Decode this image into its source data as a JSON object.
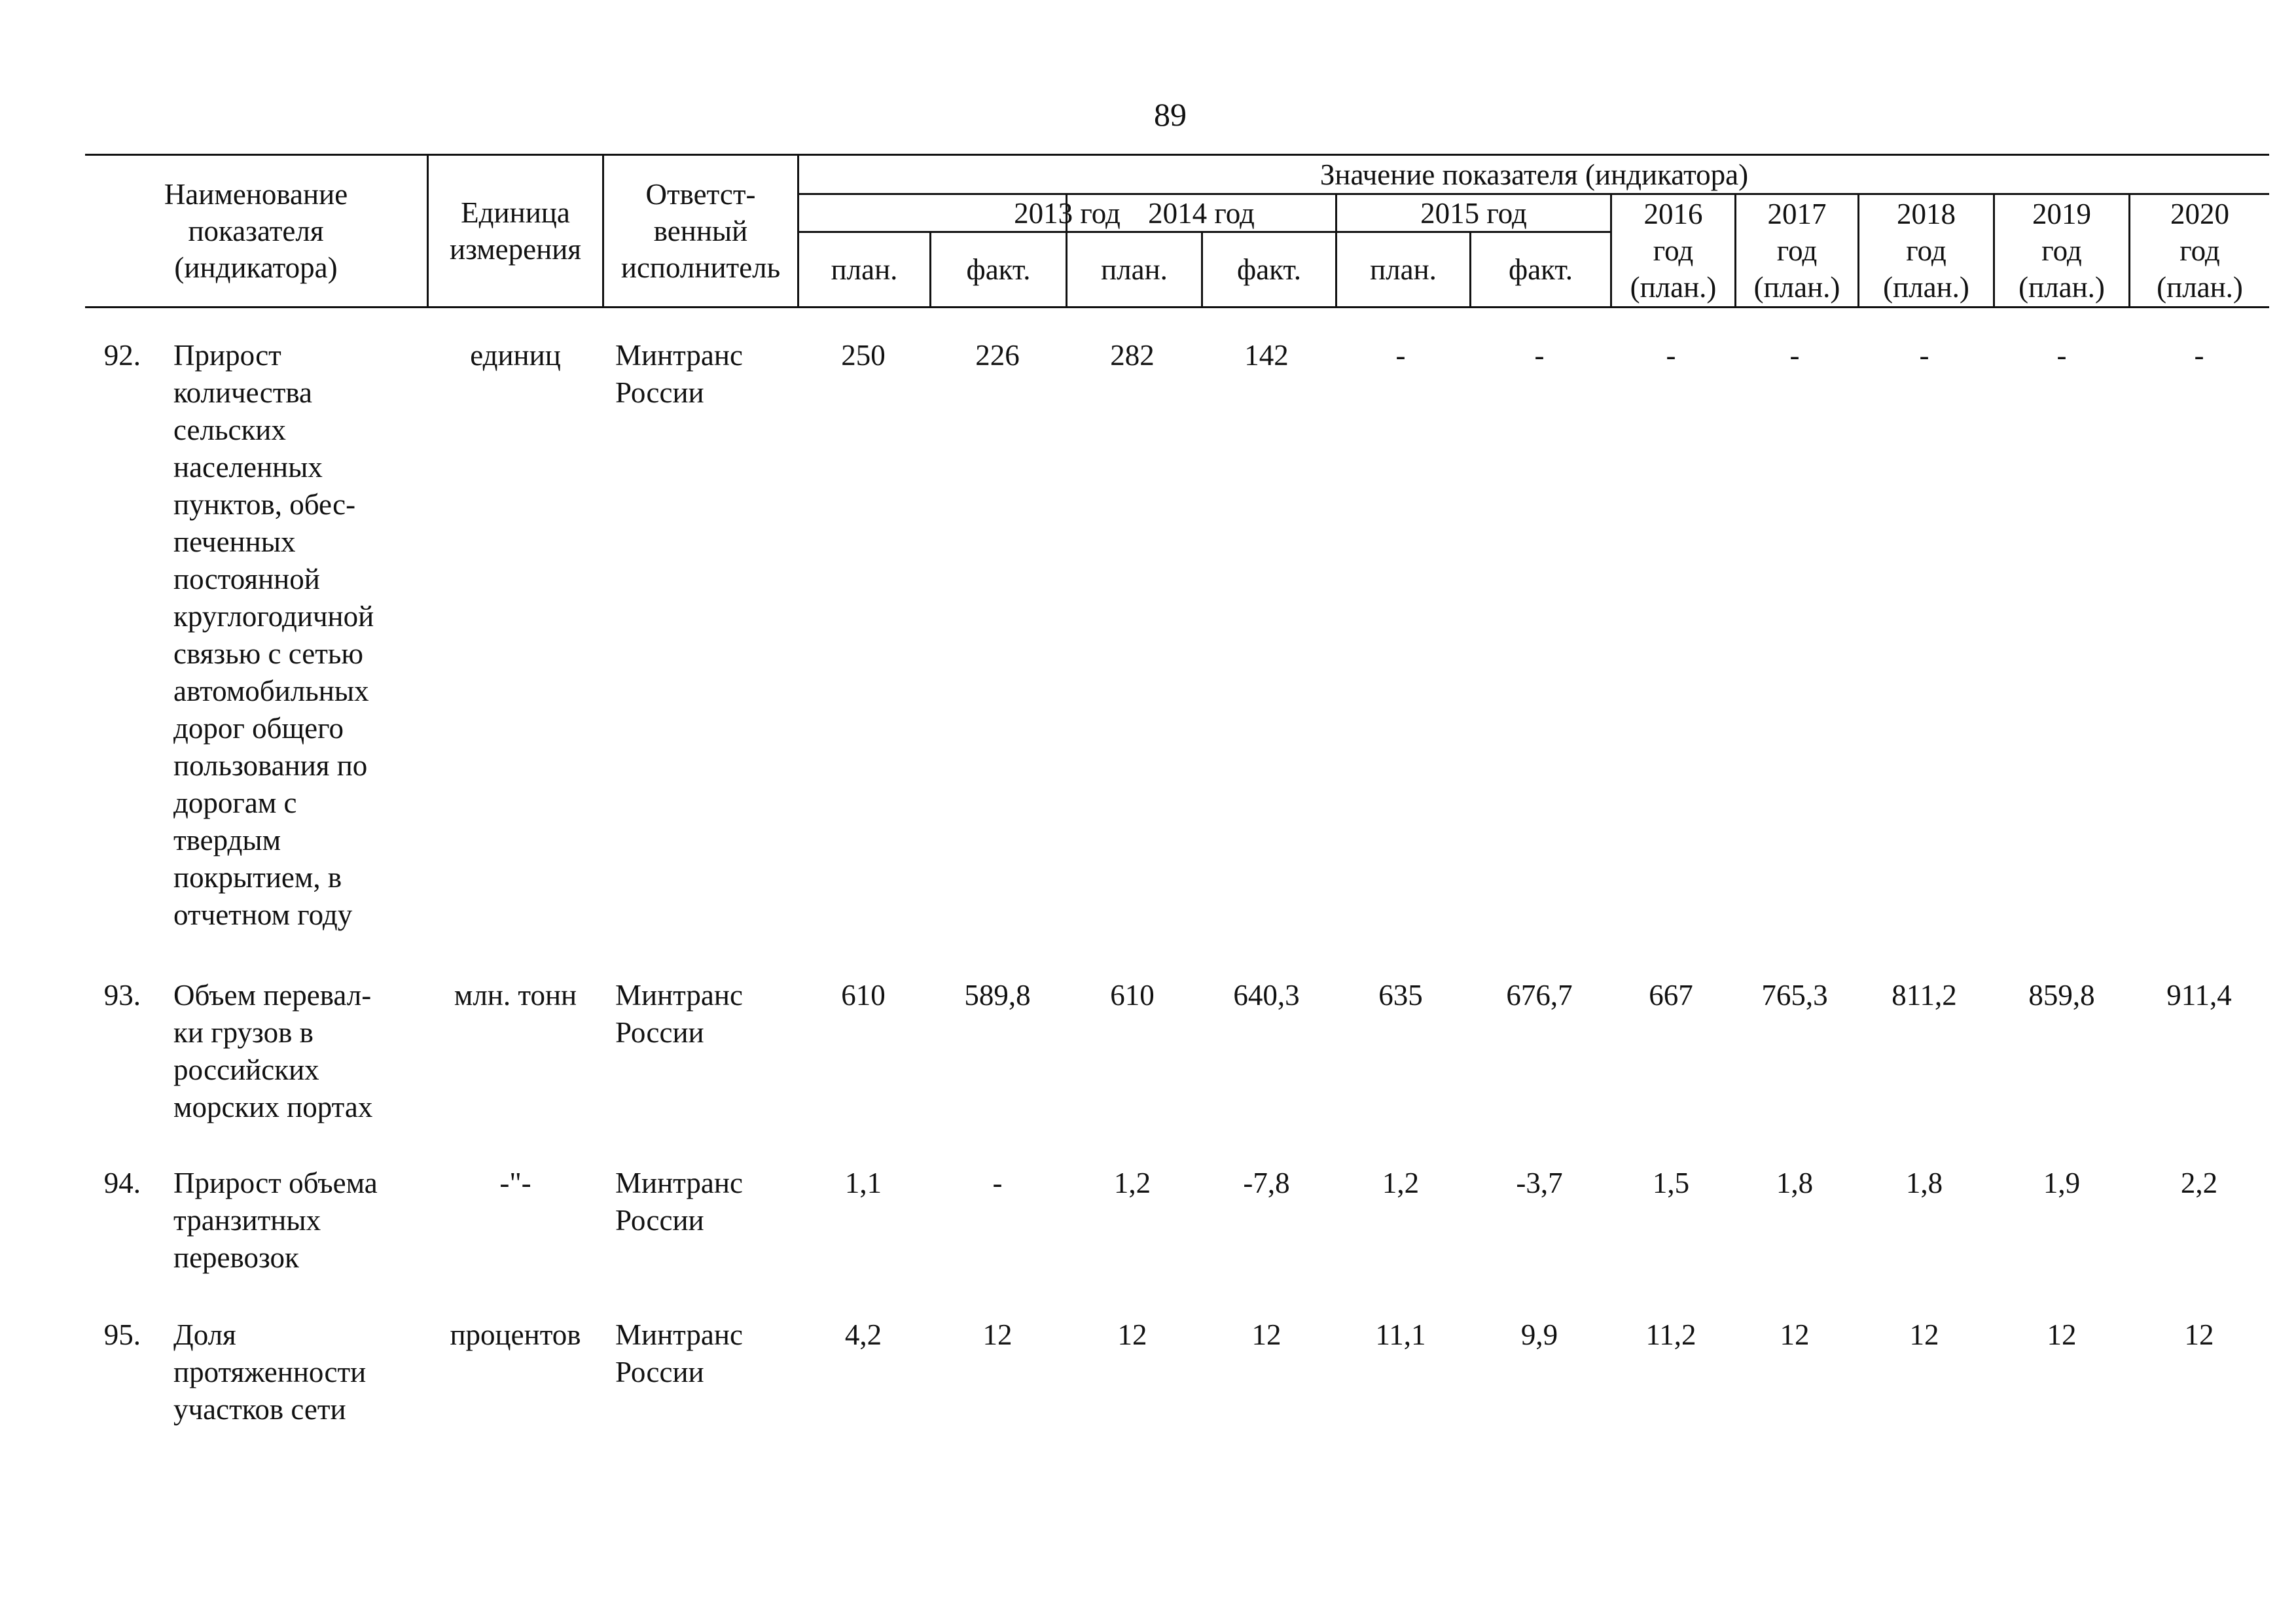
{
  "page": {
    "number": "89"
  },
  "table": {
    "header": {
      "name_lines": [
        "Наименование",
        "показателя",
        "(индикатора)"
      ],
      "unit_lines": [
        "Единица",
        "измерения"
      ],
      "executor_lines": [
        "Ответст-",
        "венный",
        "исполнитель"
      ],
      "group": "Значение показателя (индикатора)",
      "years": {
        "y2013": "2013 год",
        "y2014": "2014 год",
        "y2015": "2015 год",
        "y2016": [
          "2016",
          "год",
          "(план.)"
        ],
        "y2017": [
          "2017",
          "год",
          "(план.)"
        ],
        "y2018": [
          "2018",
          "год",
          "(план.)"
        ],
        "y2019": [
          "2019",
          "год",
          "(план.)"
        ],
        "y2020": [
          "2020",
          "год",
          "(план.)"
        ]
      },
      "plan": "план.",
      "fact": "факт."
    },
    "rows": [
      {
        "num": "92.",
        "name_lines": [
          "Прирост",
          "количества",
          "сельских",
          "населенных",
          "пунктов, обес-",
          "печенных",
          "постоянной",
          "круглогодичной",
          "связью с сетью",
          "автомобильных",
          "дорог общего",
          "пользования по",
          "дорогам с",
          "твердым",
          "покрытием, в",
          "отчетном году"
        ],
        "unit": "единиц",
        "executor_lines": [
          "Минтранс",
          "России"
        ],
        "values": [
          "250",
          "226",
          "282",
          "142",
          "-",
          "-",
          "-",
          "-",
          "-",
          "-",
          "-"
        ]
      },
      {
        "num": "93.",
        "name_lines": [
          "Объем перевал-",
          "ки грузов в",
          "российских",
          "морских портах"
        ],
        "unit": "млн. тонн",
        "executor_lines": [
          "Минтранс",
          "России"
        ],
        "values": [
          "610",
          "589,8",
          "610",
          "640,3",
          "635",
          "676,7",
          "667",
          "765,3",
          "811,2",
          "859,8",
          "911,4"
        ]
      },
      {
        "num": "94.",
        "name_lines": [
          "Прирост объема",
          "транзитных",
          "перевозок"
        ],
        "unit": "-\"-",
        "executor_lines": [
          "Минтранс",
          "России"
        ],
        "values": [
          "1,1",
          "-",
          "1,2",
          "-7,8",
          "1,2",
          "-3,7",
          "1,5",
          "1,8",
          "1,8",
          "1,9",
          "2,2"
        ]
      },
      {
        "num": "95.",
        "name_lines": [
          "Доля",
          "протяженности",
          "участков сети"
        ],
        "unit": "процентов",
        "executor_lines": [
          "Минтранс",
          "России"
        ],
        "values": [
          "4,2",
          "12",
          "12",
          "12",
          "11,1",
          "9,9",
          "11,2",
          "12",
          "12",
          "12",
          "12"
        ]
      }
    ]
  }
}
